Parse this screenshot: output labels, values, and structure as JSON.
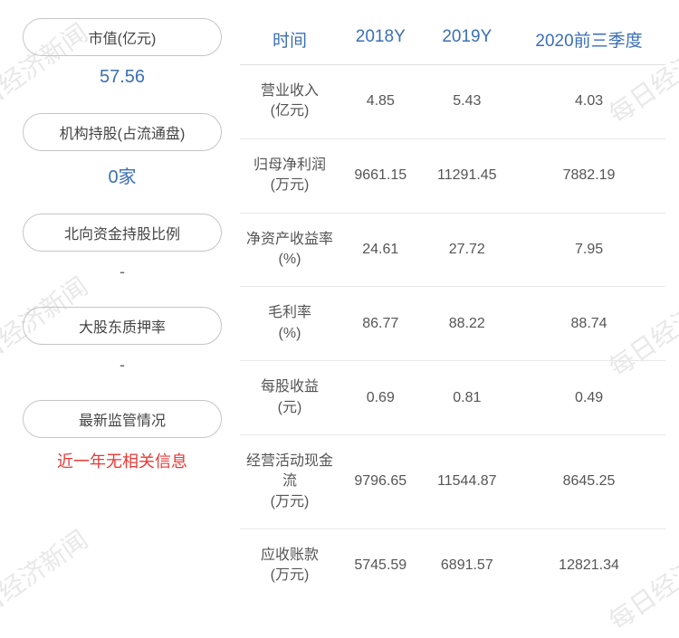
{
  "watermark_text": "每日经济新闻",
  "left": {
    "items": [
      {
        "label": "市值(亿元)",
        "value": "57.56",
        "value_type": "blue"
      },
      {
        "label": "机构持股(占流通盘)",
        "value": "0家",
        "value_type": "blue"
      },
      {
        "label": "北向资金持股比例",
        "value": "-",
        "value_type": "dash"
      },
      {
        "label": "大股东质押率",
        "value": "-",
        "value_type": "dash"
      },
      {
        "label": "最新监管情况",
        "value": "近一年无相关信息",
        "value_type": "red"
      }
    ]
  },
  "table": {
    "headers": [
      "时间",
      "2018Y",
      "2019Y",
      "2020前三季度"
    ],
    "rows": [
      {
        "label": "营业收入",
        "unit": "(亿元)",
        "v1": "4.85",
        "v2": "5.43",
        "v3": "4.03"
      },
      {
        "label": "归母净利润",
        "unit": "(万元)",
        "v1": "9661.15",
        "v2": "11291.45",
        "v3": "7882.19"
      },
      {
        "label": "净资产收益率",
        "unit": "(%)",
        "v1": "24.61",
        "v2": "27.72",
        "v3": "7.95"
      },
      {
        "label": "毛利率",
        "unit": "(%)",
        "v1": "86.77",
        "v2": "88.22",
        "v3": "88.74"
      },
      {
        "label": "每股收益",
        "unit": "(元)",
        "v1": "0.69",
        "v2": "0.81",
        "v3": "0.49"
      },
      {
        "label": "经营活动现金流",
        "unit": "(万元)",
        "v1": "9796.65",
        "v2": "11544.87",
        "v3": "8645.25"
      },
      {
        "label": "应收账款",
        "unit": "(万元)",
        "v1": "5745.59",
        "v2": "6891.57",
        "v3": "12821.34"
      }
    ]
  },
  "styles": {
    "header_color": "#3a6fb7",
    "value_color": "#3a6fb7",
    "red_color": "#e63935",
    "border_color": "#c5c5c5"
  }
}
